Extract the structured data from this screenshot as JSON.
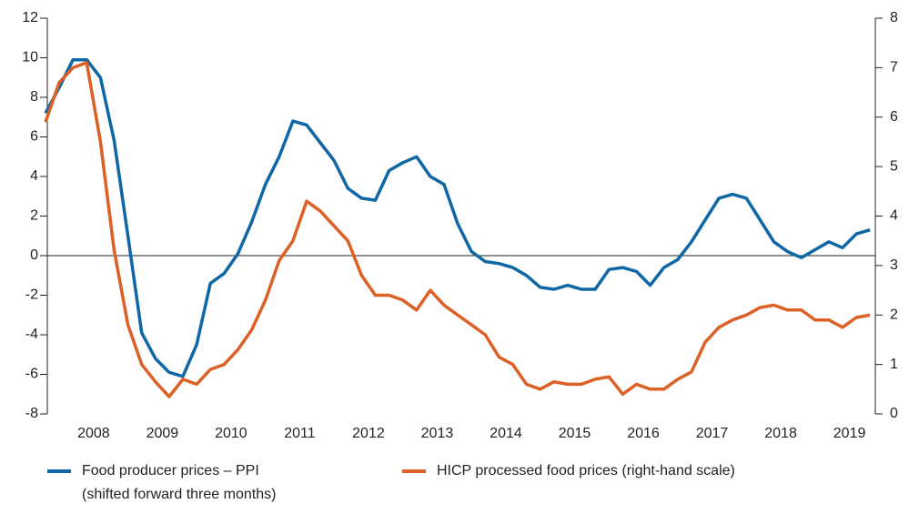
{
  "chart_data": {
    "type": "line",
    "x": [
      2007.8,
      2008.0,
      2008.2,
      2008.4,
      2008.6,
      2008.8,
      2009.0,
      2009.2,
      2009.4,
      2009.6,
      2009.8,
      2010.0,
      2010.2,
      2010.4,
      2010.6,
      2010.8,
      2011.0,
      2011.2,
      2011.4,
      2011.6,
      2011.8,
      2012.0,
      2012.2,
      2012.4,
      2012.6,
      2012.8,
      2013.0,
      2013.2,
      2013.4,
      2013.6,
      2013.8,
      2014.0,
      2014.2,
      2014.4,
      2014.6,
      2014.8,
      2015.0,
      2015.2,
      2015.4,
      2015.6,
      2015.8,
      2016.0,
      2016.2,
      2016.4,
      2016.6,
      2016.8,
      2017.0,
      2017.2,
      2017.4,
      2017.6,
      2017.8,
      2018.0,
      2018.2,
      2018.4,
      2018.6,
      2018.8,
      2019.0,
      2019.2,
      2019.4,
      2019.6,
      2019.8
    ],
    "series": [
      {
        "name": "Food producer prices – PPI (shifted forward three months)",
        "color": "#0f67a6",
        "values": [
          7.2,
          8.5,
          9.9,
          9.9,
          9.0,
          5.8,
          1.0,
          -3.9,
          -5.2,
          -5.9,
          -6.1,
          -4.5,
          -1.4,
          -0.9,
          0.1,
          1.7,
          3.6,
          5.0,
          6.8,
          6.6,
          5.7,
          4.8,
          3.4,
          2.9,
          2.8,
          4.3,
          4.7,
          5.0,
          4.0,
          3.6,
          1.6,
          0.2,
          -0.3,
          -0.4,
          -0.6,
          -1.0,
          -1.6,
          -1.7,
          -1.5,
          -1.7,
          -1.7,
          -0.7,
          -0.6,
          -0.8,
          -1.5,
          -0.6,
          -0.2,
          0.7,
          1.8,
          2.9,
          3.1,
          2.9,
          1.8,
          0.7,
          0.2,
          -0.1,
          0.3,
          0.7,
          0.4,
          1.1,
          1.3
        ]
      },
      {
        "name": "HICP processed food prices (right-hand scale)",
        "color": "#dc6127",
        "axis": "y2",
        "values": [
          5.9,
          6.7,
          7.0,
          7.1,
          5.5,
          3.3,
          1.8,
          1.0,
          0.65,
          0.35,
          0.7,
          0.6,
          0.9,
          1.0,
          1.3,
          1.7,
          2.3,
          3.1,
          3.5,
          4.3,
          4.1,
          3.8,
          3.5,
          2.8,
          2.4,
          2.4,
          2.3,
          2.1,
          2.5,
          2.2,
          2.0,
          1.8,
          1.6,
          1.15,
          1.0,
          0.6,
          0.5,
          0.65,
          0.6,
          0.6,
          0.7,
          0.75,
          0.4,
          0.6,
          0.5,
          0.5,
          0.7,
          0.85,
          1.45,
          1.75,
          1.9,
          2.0,
          2.15,
          2.2,
          2.1,
          2.1,
          1.9,
          1.9,
          1.75,
          1.95,
          2.0
        ]
      }
    ],
    "xlim": [
      2007.8,
      2019.85
    ],
    "xticks": [
      {
        "value": 2008.5,
        "label": "2008"
      },
      {
        "value": 2009.5,
        "label": "2009"
      },
      {
        "value": 2010.5,
        "label": "2010"
      },
      {
        "value": 2011.5,
        "label": "2011"
      },
      {
        "value": 2012.5,
        "label": "2012"
      },
      {
        "value": 2013.5,
        "label": "2013"
      },
      {
        "value": 2014.5,
        "label": "2014"
      },
      {
        "value": 2015.5,
        "label": "2015"
      },
      {
        "value": 2016.5,
        "label": "2016"
      },
      {
        "value": 2017.5,
        "label": "2017"
      },
      {
        "value": 2018.5,
        "label": "2018"
      },
      {
        "value": 2019.5,
        "label": "2019"
      }
    ],
    "ylim": [
      -8,
      12
    ],
    "yticks": [
      -8,
      -6,
      -4,
      -2,
      0,
      2,
      4,
      6,
      8,
      10,
      12
    ],
    "y2lim": [
      0,
      8
    ],
    "y2ticks": [
      0,
      1,
      2,
      3,
      4,
      5,
      6,
      7,
      8
    ],
    "grid": false
  }
}
